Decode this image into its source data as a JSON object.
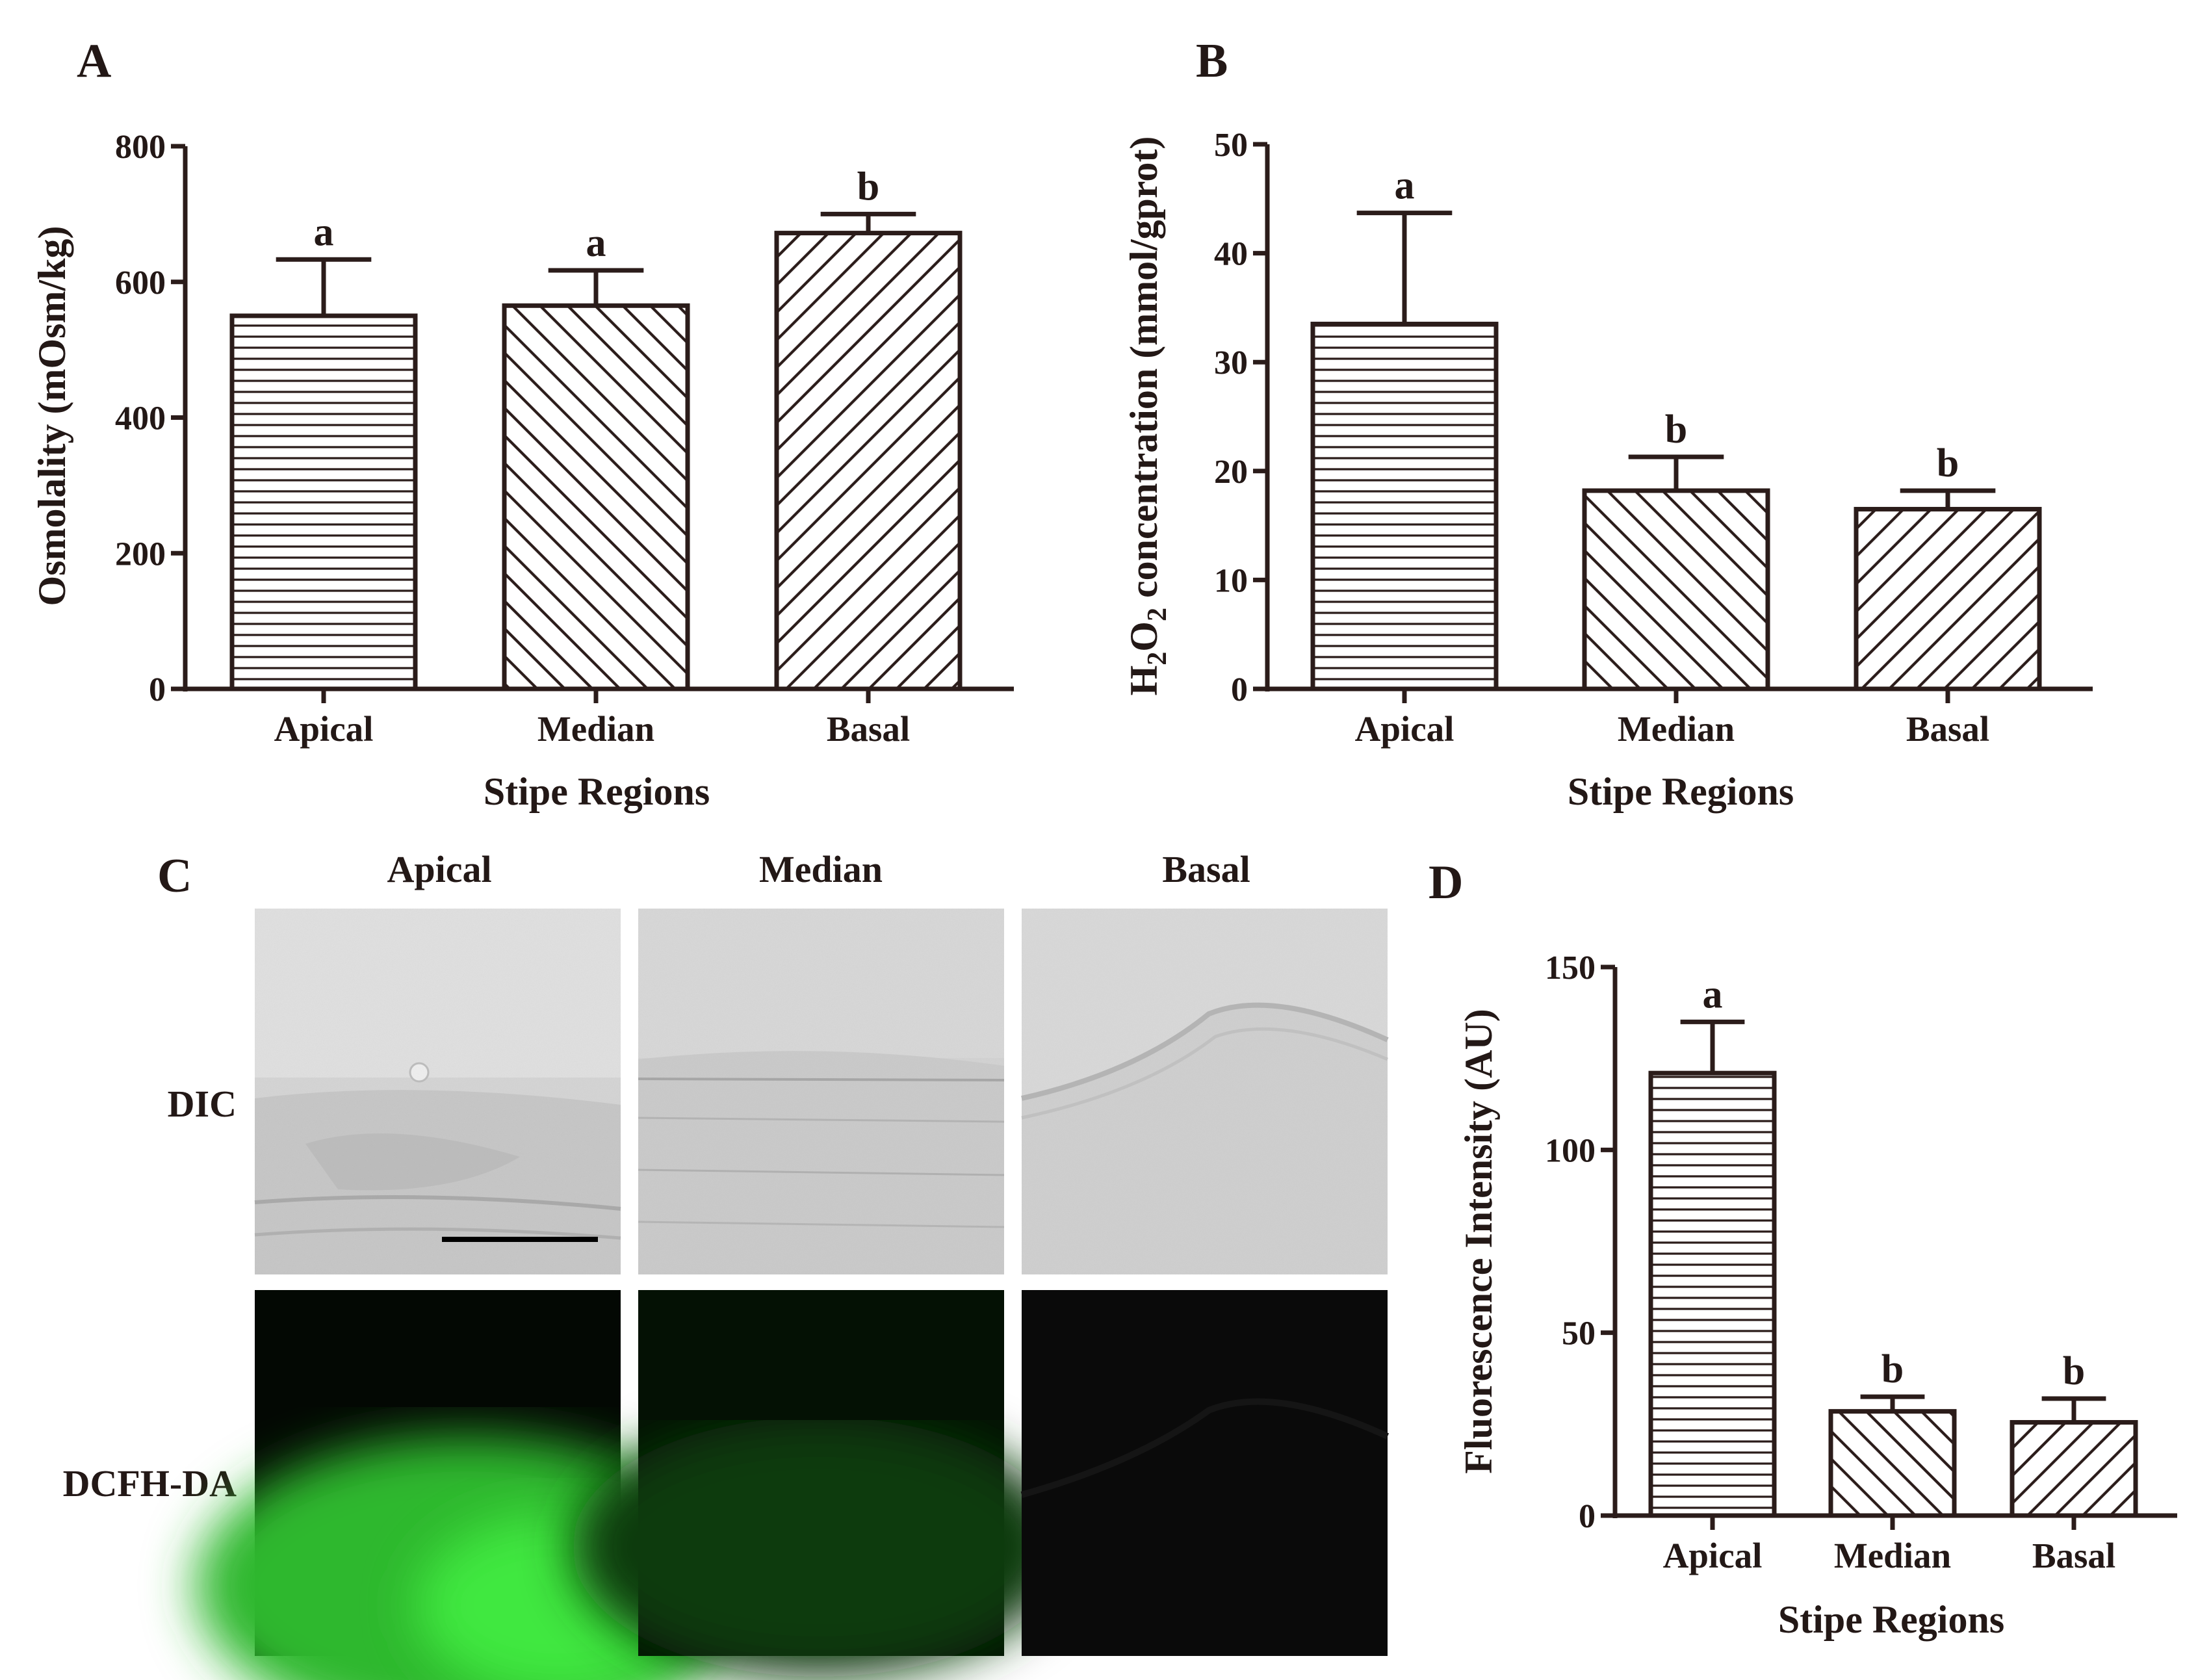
{
  "panels": {
    "A": {
      "label": "A"
    },
    "B": {
      "label": "B"
    },
    "C": {
      "label": "C"
    },
    "D": {
      "label": "D"
    }
  },
  "panel_c": {
    "columns": [
      "Apical",
      "Median",
      "Basal"
    ],
    "rows": [
      "DIC",
      "DCFH-DA"
    ],
    "dcfh_intensity": [
      0.85,
      0.25,
      0.03
    ]
  },
  "pattern_by_category": {
    "Apical": "horizontal",
    "Median": "diag-up",
    "Basal": "diag-down"
  },
  "chart_data": [
    {
      "id": "A",
      "type": "bar",
      "categories": [
        "Apical",
        "Median",
        "Basal"
      ],
      "values": [
        550,
        565,
        672
      ],
      "errors": [
        83,
        52,
        28
      ],
      "letters": [
        "a",
        "a",
        "b"
      ],
      "xlabel": "Stipe Regions",
      "ylabel": "Osmolality  (mOsm/kg)",
      "ylim": [
        0,
        800
      ],
      "yticks": [
        "0",
        "200",
        "400",
        "600",
        "800"
      ],
      "grid": false
    },
    {
      "id": "B",
      "type": "bar",
      "categories": [
        "Apical",
        "Median",
        "Basal"
      ],
      "values": [
        33.5,
        18.2,
        16.5
      ],
      "errors": [
        10.2,
        3.1,
        1.7
      ],
      "letters": [
        "a",
        "b",
        "b"
      ],
      "xlabel": "Stipe Regions",
      "ylabel_main": "H",
      "ylabel_sub1": "2",
      "ylabel_mid": "O",
      "ylabel_sub2": "2",
      "ylabel_rest": " concentration (mmol/gprot)",
      "ylim": [
        0,
        50
      ],
      "yticks": [
        "0",
        "10",
        "20",
        "30",
        "40",
        "50"
      ],
      "grid": false
    },
    {
      "id": "D",
      "type": "bar",
      "categories": [
        "Apical",
        "Median",
        "Basal"
      ],
      "values": [
        121,
        28.5,
        25.5
      ],
      "errors": [
        14,
        4,
        6.5
      ],
      "letters": [
        "a",
        "b",
        "b"
      ],
      "xlabel": "Stipe Regions",
      "ylabel": "Fluorescence Intensity (AU)",
      "ylim": [
        0,
        150
      ],
      "yticks": [
        "0",
        "50",
        "100",
        "150"
      ],
      "grid": false
    }
  ]
}
